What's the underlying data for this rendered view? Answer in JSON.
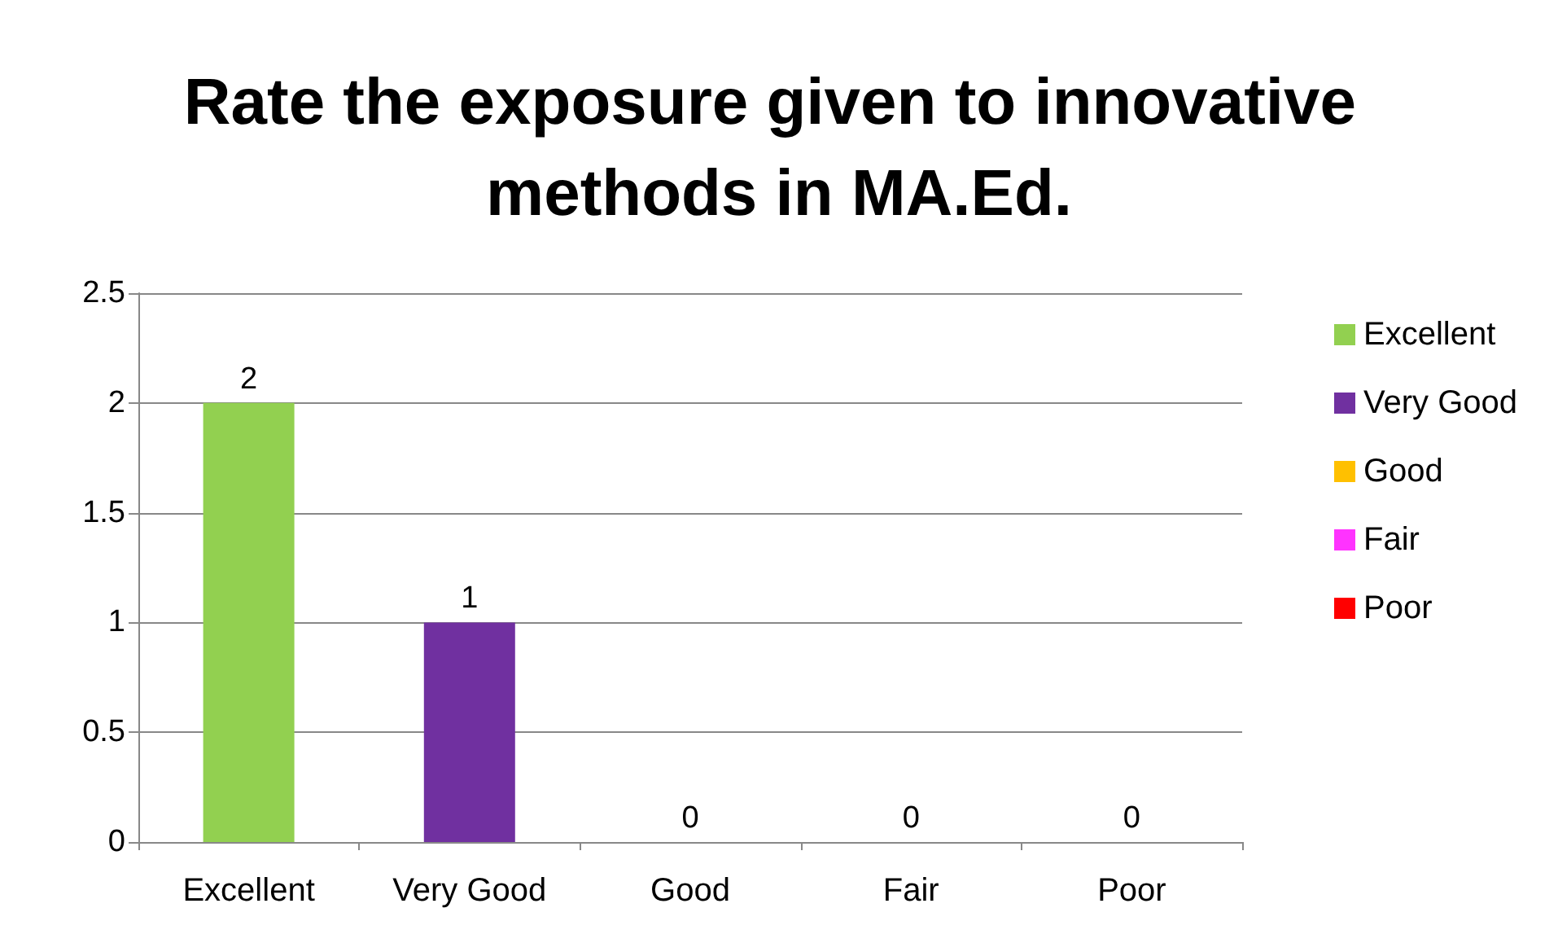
{
  "chart_data": {
    "type": "bar",
    "title": "Rate the exposure given to innovative methods in MA.Ed.",
    "categories": [
      "Excellent",
      "Very Good",
      "Good",
      "Fair",
      "Poor"
    ],
    "series": [
      {
        "name": "Excellent",
        "color": "#92d050",
        "values": [
          2,
          null,
          null,
          null,
          null
        ]
      },
      {
        "name": "Very Good",
        "color": "#7030a0",
        "values": [
          null,
          1,
          null,
          null,
          null
        ]
      },
      {
        "name": "Good",
        "color": "#ffc000",
        "values": [
          null,
          null,
          0,
          null,
          null
        ]
      },
      {
        "name": "Fair",
        "color": "#ff33ff",
        "values": [
          null,
          null,
          null,
          0,
          null
        ]
      },
      {
        "name": "Poor",
        "color": "#ff0000",
        "values": [
          null,
          null,
          null,
          null,
          0
        ]
      }
    ],
    "ylim": [
      0,
      2.5
    ],
    "yticks": [
      0,
      0.5,
      1,
      1.5,
      2,
      2.5
    ],
    "grid": "y",
    "legend": "right",
    "data_labels": true
  }
}
